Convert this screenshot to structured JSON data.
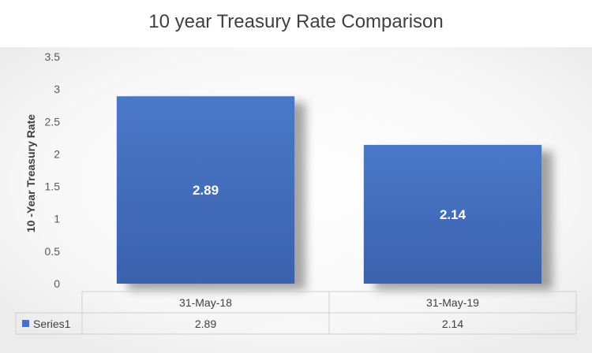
{
  "chart_data": {
    "type": "bar",
    "title": "10 year Treasury Rate Comparison",
    "xlabel": "",
    "ylabel": "10 -Year Treasury Rate",
    "categories": [
      "31-May-18",
      "31-May-19"
    ],
    "series": [
      {
        "name": "Series1",
        "values": [
          2.89,
          2.14
        ],
        "color": "#4472C4"
      }
    ],
    "ylim": [
      0,
      3.5
    ],
    "yticks": [
      "0",
      "0.5",
      "1",
      "1.5",
      "2",
      "2.5",
      "3",
      "3.5"
    ],
    "data_labels": [
      "2.89",
      "2.14"
    ],
    "data_table": true,
    "grid": false,
    "legend": "data-table"
  }
}
